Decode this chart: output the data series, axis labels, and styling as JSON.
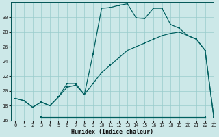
{
  "xlabel": "Humidex (Indice chaleur)",
  "bg_color": "#cce8e8",
  "grid_color": "#99cccc",
  "line_color": "#006060",
  "line1_x": [
    0,
    1,
    2,
    3,
    4,
    5,
    6,
    7,
    8,
    9,
    10,
    11,
    12,
    13,
    14,
    15,
    16,
    17,
    18,
    19,
    20,
    21,
    22,
    23
  ],
  "line1_y": [
    19.0,
    18.7,
    17.8,
    18.5,
    18.0,
    19.2,
    21.0,
    21.0,
    19.5,
    25.0,
    31.2,
    31.3,
    31.6,
    31.8,
    29.9,
    29.8,
    31.2,
    31.2,
    29.0,
    28.5,
    27.5,
    27.0,
    25.5,
    16.5
  ],
  "line2_x": [
    0,
    1,
    2,
    3,
    4,
    5,
    6,
    7,
    8,
    9,
    10,
    11,
    12,
    13,
    14,
    15,
    16,
    17,
    18,
    19,
    20,
    21,
    22,
    23
  ],
  "line2_y": [
    19.0,
    18.7,
    17.8,
    18.5,
    18.0,
    19.2,
    20.5,
    20.8,
    19.5,
    21.0,
    22.5,
    23.5,
    24.5,
    25.5,
    26.0,
    26.5,
    27.0,
    27.5,
    27.8,
    28.0,
    27.5,
    27.0,
    25.5,
    16.5
  ],
  "line3_x": [
    3,
    22
  ],
  "line3_y": [
    16.5,
    16.5
  ],
  "ylim": [
    16,
    32
  ],
  "xlim": [
    -0.5,
    23
  ],
  "yticks": [
    16,
    18,
    20,
    22,
    24,
    26,
    28,
    30
  ],
  "xticks": [
    0,
    1,
    2,
    3,
    4,
    5,
    6,
    7,
    8,
    9,
    10,
    11,
    12,
    13,
    14,
    15,
    16,
    17,
    18,
    19,
    20,
    21,
    22,
    23
  ],
  "figsize": [
    3.2,
    2.0
  ],
  "dpi": 100
}
